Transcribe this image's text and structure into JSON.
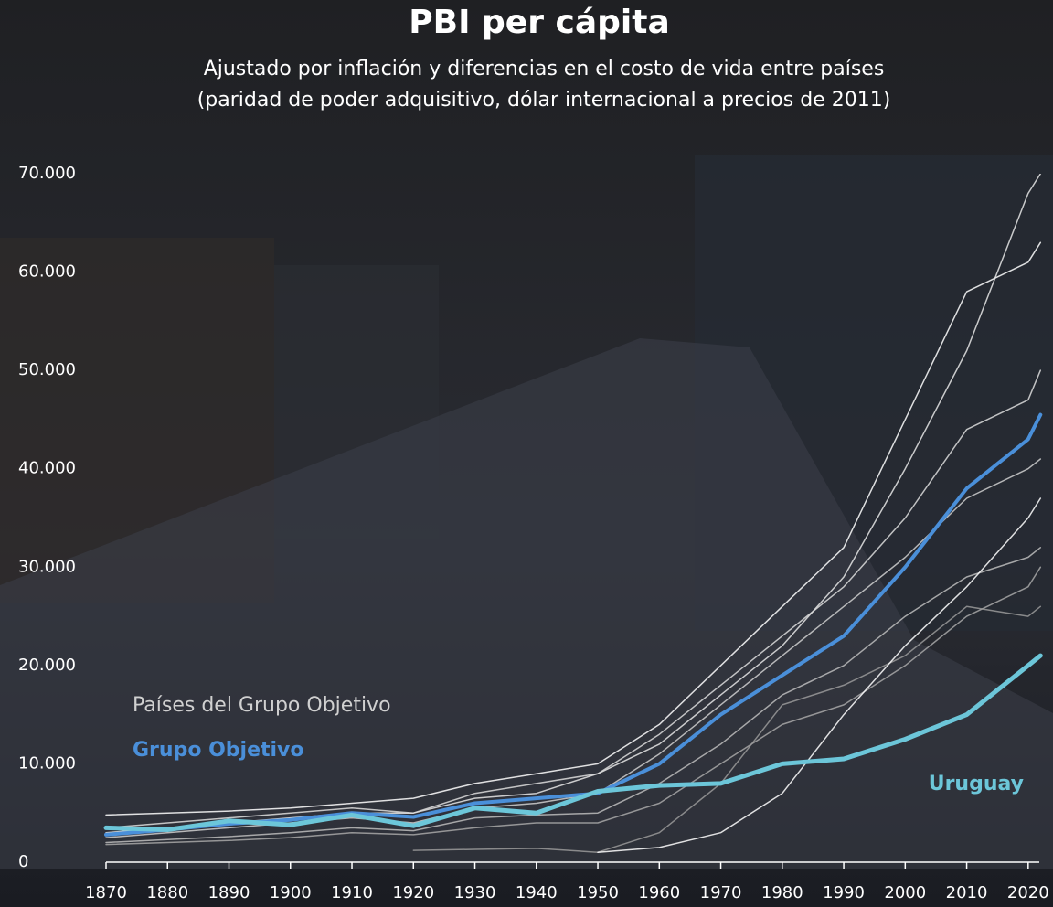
{
  "chart_data": {
    "type": "line",
    "title": "PBI per cápita",
    "subtitle": [
      "Ajustado por inflación y diferencias en el costo de vida entre países",
      "(paridad de poder adquisitivo, dólar internacional a precios de 2011)"
    ],
    "annotations": [
      "Países del Grupo Objetivo"
    ],
    "x": [
      1870,
      1880,
      1890,
      1900,
      1910,
      1920,
      1930,
      1940,
      1950,
      1960,
      1970,
      1980,
      1990,
      2000,
      2010,
      2020,
      2022
    ],
    "xlim": [
      1870,
      2023
    ],
    "xticks": [
      1870,
      1880,
      1890,
      1900,
      1910,
      1920,
      1930,
      1940,
      1950,
      1960,
      1970,
      1980,
      1990,
      2000,
      2010,
      2020
    ],
    "ylim": [
      0,
      70000
    ],
    "yticks": [
      0,
      {
        "value": 10000,
        "label": "10.000"
      },
      {
        "value": 20000,
        "label": "20.000"
      },
      {
        "value": 30000,
        "label": "30.000"
      },
      {
        "value": 40000,
        "label": "40.000"
      },
      {
        "value": 50000,
        "label": "50.000"
      },
      {
        "value": 60000,
        "label": "60.000"
      },
      {
        "value": 70000,
        "label": "70.000"
      }
    ],
    "series": [
      {
        "color": "#ffffff",
        "values": [
          4800,
          5000,
          5200,
          5500,
          6000,
          6500,
          8000,
          9000,
          10000,
          14000,
          20000,
          26000,
          32000,
          45000,
          58000,
          61000,
          63000
        ]
      },
      {
        "color": "#e6e6e6",
        "values": [
          3000,
          3500,
          4000,
          4500,
          5000,
          5000,
          6500,
          7000,
          9000,
          12000,
          17000,
          22000,
          29000,
          40000,
          52000,
          68000,
          70000
        ]
      },
      {
        "color": "#dddddd",
        "values": [
          3500,
          4000,
          4500,
          5000,
          5500,
          5000,
          7000,
          8000,
          9000,
          13000,
          18000,
          23000,
          28000,
          35000,
          44000,
          47000,
          50000
        ]
      },
      {
        "color": "#cfcfcf",
        "values": [
          2500,
          3000,
          3500,
          4000,
          4500,
          4000,
          5500,
          6000,
          7000,
          11000,
          16000,
          21000,
          26000,
          31000,
          37000,
          40000,
          41000
        ]
      },
      {
        "color": "#bdbdbd",
        "values": [
          2000,
          2300,
          2600,
          3000,
          3500,
          3200,
          4500,
          4800,
          5000,
          8000,
          12000,
          17000,
          20000,
          25000,
          29000,
          31000,
          32000
        ]
      },
      {
        "color": "#a8a8a8",
        "values": [
          1800,
          2000,
          2200,
          2500,
          3000,
          2800,
          3500,
          4000,
          4000,
          6000,
          10000,
          14000,
          16000,
          20000,
          25000,
          28000,
          30000
        ]
      },
      {
        "color": "#9a9a9a",
        "values": [
          null,
          null,
          null,
          null,
          null,
          1200,
          1300,
          1400,
          1000,
          3000,
          8000,
          16000,
          18000,
          21000,
          26000,
          25000,
          26000
        ]
      },
      {
        "color": "#ffffff",
        "values": [
          null,
          null,
          null,
          null,
          null,
          null,
          null,
          null,
          1000,
          1500,
          3000,
          7000,
          15000,
          22000,
          28000,
          35000,
          37000
        ]
      },
      {
        "name": "Grupo Objetivo",
        "color": "#4a8fd9",
        "width": 4,
        "values": [
          2800,
          3300,
          3900,
          4300,
          5000,
          4600,
          6000,
          6500,
          7000,
          10000,
          15000,
          19000,
          23000,
          30000,
          38000,
          43000,
          45500
        ]
      },
      {
        "name": "Uruguay",
        "color": "#6cc6d9",
        "width": 5,
        "values": [
          3500,
          3300,
          4200,
          3800,
          4800,
          3700,
          5500,
          5000,
          7200,
          7800,
          8000,
          10000,
          10500,
          12500,
          15000,
          20000,
          21000
        ]
      }
    ]
  }
}
